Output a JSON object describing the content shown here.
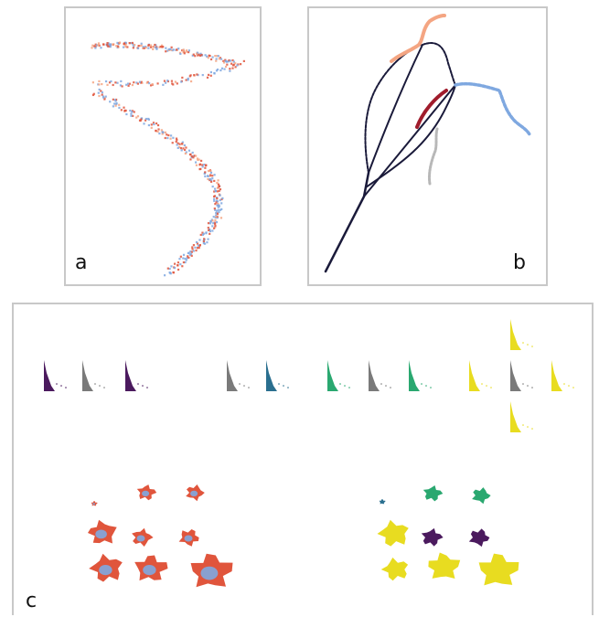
{
  "panels": {
    "a": {
      "label": "a"
    },
    "b": {
      "label": "b"
    },
    "c": {
      "label": "c"
    }
  },
  "colors": {
    "warm": "#e0553c",
    "light_warm": "#f4a582",
    "cool": "#7fa8e0",
    "dark": "#1a1a3a",
    "dark_red": "#a01c2c",
    "grey": "#b8b8b8",
    "purple": "#4b1a5e",
    "teal": "#2a6f8f",
    "green": "#2aa870",
    "yellow": "#e8dc20",
    "mid_grey": "#7a7a7a"
  }
}
